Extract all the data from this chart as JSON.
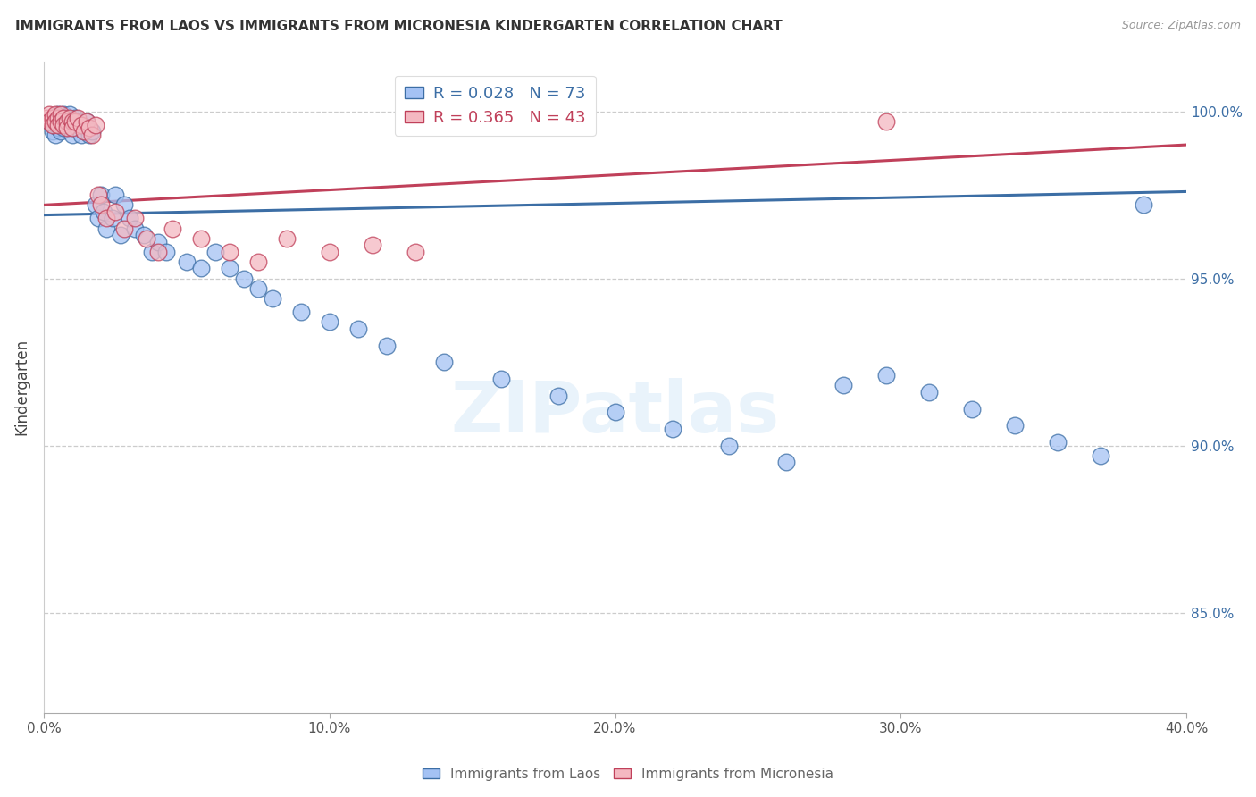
{
  "title": "IMMIGRANTS FROM LAOS VS IMMIGRANTS FROM MICRONESIA KINDERGARTEN CORRELATION CHART",
  "source": "Source: ZipAtlas.com",
  "ylabel": "Kindergarten",
  "ytick_labels": [
    "85.0%",
    "90.0%",
    "95.0%",
    "100.0%"
  ],
  "ytick_values": [
    0.85,
    0.9,
    0.95,
    1.0
  ],
  "xlim": [
    0.0,
    0.4
  ],
  "ylim": [
    0.82,
    1.015
  ],
  "xtick_values": [
    0.0,
    0.1,
    0.2,
    0.3,
    0.4
  ],
  "xtick_labels": [
    "0.0%",
    "10.0%",
    "20.0%",
    "30.0%",
    "40.0%"
  ],
  "legend_r1": "R = 0.028",
  "legend_n1": "N = 73",
  "legend_r2": "R = 0.365",
  "legend_n2": "N = 43",
  "color_blue": "#a4c2f4",
  "color_pink": "#f4b8c1",
  "color_blue_edge": "#3c6ea5",
  "color_pink_edge": "#c0405a",
  "color_blue_line": "#3c6ea5",
  "color_pink_line": "#c0405a",
  "color_text_blue": "#3c6ea5",
  "color_text_pink": "#c0405a",
  "watermark": "ZIPatlas",
  "laos_x": [
    0.002,
    0.003,
    0.003,
    0.004,
    0.004,
    0.005,
    0.005,
    0.005,
    0.006,
    0.006,
    0.006,
    0.007,
    0.007,
    0.007,
    0.008,
    0.008,
    0.009,
    0.009,
    0.01,
    0.01,
    0.01,
    0.011,
    0.011,
    0.012,
    0.012,
    0.013,
    0.013,
    0.014,
    0.015,
    0.015,
    0.016,
    0.017,
    0.018,
    0.019,
    0.02,
    0.021,
    0.022,
    0.024,
    0.025,
    0.027,
    0.028,
    0.03,
    0.032,
    0.035,
    0.038,
    0.04,
    0.043,
    0.05,
    0.055,
    0.06,
    0.065,
    0.07,
    0.075,
    0.08,
    0.09,
    0.1,
    0.11,
    0.12,
    0.14,
    0.16,
    0.18,
    0.2,
    0.22,
    0.24,
    0.26,
    0.28,
    0.295,
    0.31,
    0.325,
    0.34,
    0.355,
    0.37,
    0.385
  ],
  "laos_y": [
    0.997,
    0.996,
    0.994,
    0.998,
    0.993,
    0.999,
    0.997,
    0.995,
    0.998,
    0.996,
    0.994,
    0.999,
    0.997,
    0.995,
    0.998,
    0.996,
    0.999,
    0.995,
    0.997,
    0.995,
    0.993,
    0.998,
    0.996,
    0.997,
    0.995,
    0.996,
    0.993,
    0.994,
    0.997,
    0.995,
    0.993,
    0.994,
    0.972,
    0.968,
    0.975,
    0.97,
    0.965,
    0.968,
    0.975,
    0.963,
    0.972,
    0.968,
    0.965,
    0.963,
    0.958,
    0.961,
    0.958,
    0.955,
    0.953,
    0.958,
    0.953,
    0.95,
    0.947,
    0.944,
    0.94,
    0.937,
    0.935,
    0.93,
    0.925,
    0.92,
    0.915,
    0.91,
    0.905,
    0.9,
    0.895,
    0.918,
    0.921,
    0.916,
    0.911,
    0.906,
    0.901,
    0.897,
    0.972
  ],
  "micronesia_x": [
    0.001,
    0.002,
    0.002,
    0.003,
    0.003,
    0.004,
    0.004,
    0.005,
    0.005,
    0.006,
    0.006,
    0.007,
    0.007,
    0.008,
    0.008,
    0.009,
    0.01,
    0.01,
    0.011,
    0.012,
    0.013,
    0.014,
    0.015,
    0.016,
    0.017,
    0.018,
    0.019,
    0.02,
    0.022,
    0.025,
    0.028,
    0.032,
    0.036,
    0.04,
    0.045,
    0.055,
    0.065,
    0.075,
    0.085,
    0.1,
    0.115,
    0.13,
    0.295
  ],
  "micronesia_y": [
    0.998,
    0.999,
    0.997,
    0.998,
    0.996,
    0.999,
    0.997,
    0.998,
    0.996,
    0.999,
    0.997,
    0.998,
    0.996,
    0.997,
    0.995,
    0.998,
    0.997,
    0.995,
    0.997,
    0.998,
    0.996,
    0.994,
    0.997,
    0.995,
    0.993,
    0.996,
    0.975,
    0.972,
    0.968,
    0.97,
    0.965,
    0.968,
    0.962,
    0.958,
    0.965,
    0.962,
    0.958,
    0.955,
    0.962,
    0.958,
    0.96,
    0.958,
    0.997
  ],
  "blue_line_x": [
    0.0,
    0.4
  ],
  "blue_line_y": [
    0.969,
    0.976
  ],
  "pink_line_x": [
    0.0,
    0.4
  ],
  "pink_line_y": [
    0.972,
    0.99
  ]
}
